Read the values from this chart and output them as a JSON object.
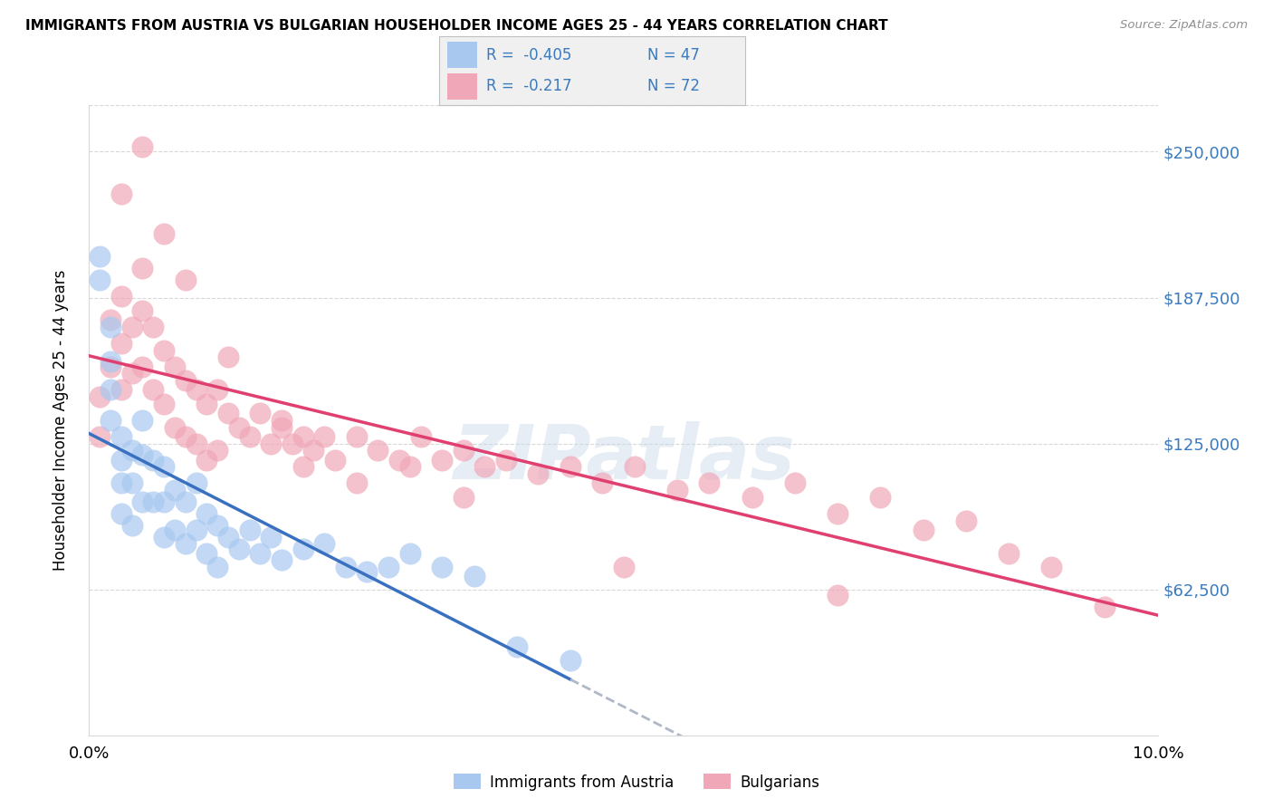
{
  "title": "IMMIGRANTS FROM AUSTRIA VS BULGARIAN HOUSEHOLDER INCOME AGES 25 - 44 YEARS CORRELATION CHART",
  "source": "Source: ZipAtlas.com",
  "ylabel": "Householder Income Ages 25 - 44 years",
  "yticks": [
    62500,
    125000,
    187500,
    250000
  ],
  "ytick_labels": [
    "$62,500",
    "$125,000",
    "$187,500",
    "$250,000"
  ],
  "xlim": [
    0.0,
    0.1
  ],
  "ylim": [
    0,
    270000
  ],
  "legend_austria_r": "-0.405",
  "legend_austria_n": "47",
  "legend_bulgarian_r": "-0.217",
  "legend_bulgarian_n": "72",
  "austria_color": "#a8c8f0",
  "bulgarian_color": "#f0a8b8",
  "austria_line_color": "#3a70c0",
  "bulgarian_line_color": "#e04070",
  "dashed_line_color": "#b0b8c8",
  "watermark": "ZIPatlas",
  "background_color": "#ffffff",
  "grid_color": "#d8d8d8",
  "right_label_color": "#3a7abf",
  "austria_scatter_x": [
    0.001,
    0.001,
    0.002,
    0.002,
    0.002,
    0.002,
    0.003,
    0.003,
    0.003,
    0.003,
    0.004,
    0.004,
    0.004,
    0.005,
    0.005,
    0.005,
    0.006,
    0.006,
    0.007,
    0.007,
    0.007,
    0.008,
    0.008,
    0.009,
    0.009,
    0.01,
    0.01,
    0.011,
    0.011,
    0.012,
    0.012,
    0.013,
    0.014,
    0.015,
    0.016,
    0.017,
    0.018,
    0.02,
    0.022,
    0.024,
    0.026,
    0.028,
    0.03,
    0.033,
    0.036,
    0.04,
    0.045
  ],
  "austria_scatter_y": [
    205000,
    195000,
    175000,
    160000,
    148000,
    135000,
    128000,
    118000,
    108000,
    95000,
    122000,
    108000,
    90000,
    135000,
    120000,
    100000,
    118000,
    100000,
    115000,
    100000,
    85000,
    105000,
    88000,
    100000,
    82000,
    108000,
    88000,
    95000,
    78000,
    90000,
    72000,
    85000,
    80000,
    88000,
    78000,
    85000,
    75000,
    80000,
    82000,
    72000,
    70000,
    72000,
    78000,
    72000,
    68000,
    38000,
    32000
  ],
  "bulgarian_scatter_x": [
    0.001,
    0.001,
    0.002,
    0.002,
    0.003,
    0.003,
    0.003,
    0.004,
    0.004,
    0.005,
    0.005,
    0.005,
    0.006,
    0.006,
    0.007,
    0.007,
    0.008,
    0.008,
    0.009,
    0.009,
    0.01,
    0.01,
    0.011,
    0.011,
    0.012,
    0.012,
    0.013,
    0.014,
    0.015,
    0.016,
    0.017,
    0.018,
    0.019,
    0.02,
    0.021,
    0.022,
    0.023,
    0.025,
    0.027,
    0.029,
    0.031,
    0.033,
    0.035,
    0.037,
    0.039,
    0.042,
    0.045,
    0.048,
    0.051,
    0.055,
    0.058,
    0.062,
    0.066,
    0.07,
    0.074,
    0.078,
    0.082,
    0.086,
    0.09,
    0.095,
    0.003,
    0.005,
    0.007,
    0.009,
    0.013,
    0.018,
    0.025,
    0.035,
    0.05,
    0.07,
    0.02,
    0.03
  ],
  "bulgarian_scatter_y": [
    145000,
    128000,
    178000,
    158000,
    188000,
    168000,
    148000,
    175000,
    155000,
    200000,
    182000,
    158000,
    175000,
    148000,
    165000,
    142000,
    158000,
    132000,
    152000,
    128000,
    148000,
    125000,
    142000,
    118000,
    148000,
    122000,
    138000,
    132000,
    128000,
    138000,
    125000,
    132000,
    125000,
    128000,
    122000,
    128000,
    118000,
    128000,
    122000,
    118000,
    128000,
    118000,
    122000,
    115000,
    118000,
    112000,
    115000,
    108000,
    115000,
    105000,
    108000,
    102000,
    108000,
    95000,
    102000,
    88000,
    92000,
    78000,
    72000,
    55000,
    232000,
    252000,
    215000,
    195000,
    162000,
    135000,
    108000,
    102000,
    72000,
    60000,
    115000,
    115000
  ]
}
